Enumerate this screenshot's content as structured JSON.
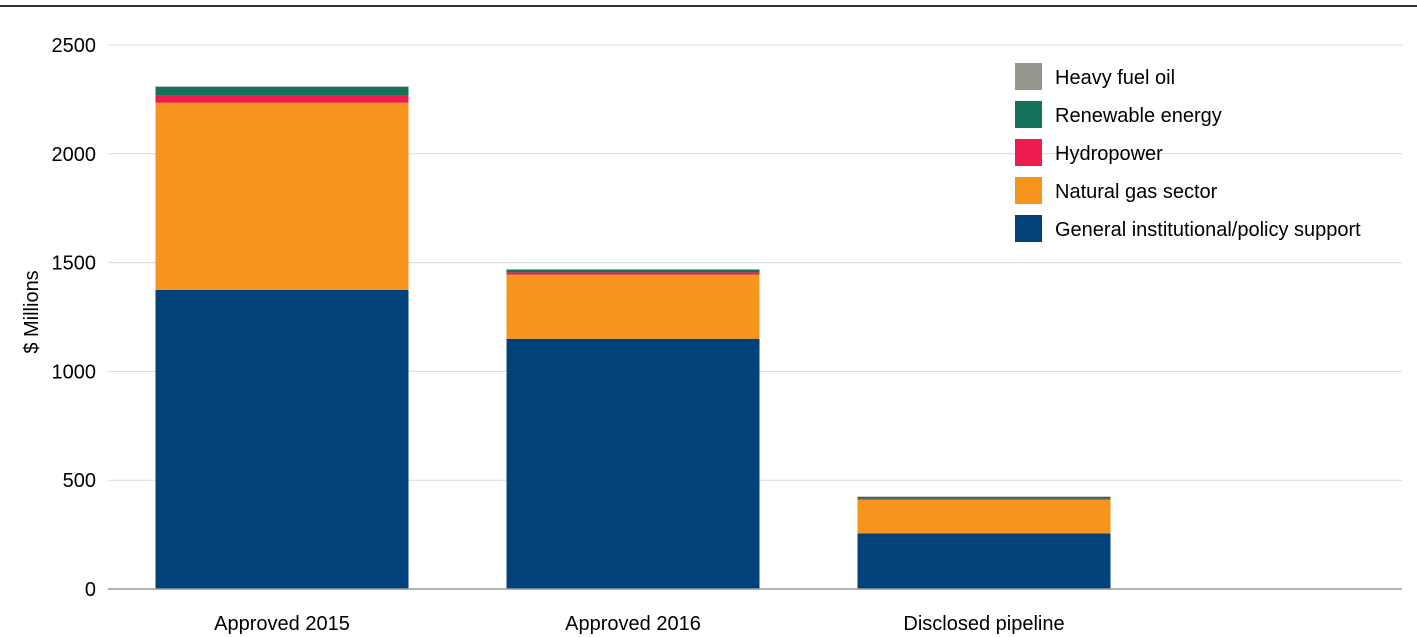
{
  "chart_data": {
    "type": "bar",
    "stacked": true,
    "title": "",
    "xlabel": "",
    "ylabel": "$ Millions",
    "ylim": [
      0,
      2500
    ],
    "yticks": [
      0,
      500,
      1000,
      1500,
      2000,
      2500
    ],
    "grid": true,
    "legend_position": "top-right",
    "categories": [
      "Approved 2015",
      "Approved 2016",
      "Disclosed pipeline"
    ],
    "series": [
      {
        "name": "General institutional/policy support",
        "color": "#02427a",
        "values": [
          1375,
          1150,
          255
        ]
      },
      {
        "name": "Natural gas sector",
        "color": "#f7941d",
        "values": [
          860,
          295,
          155
        ]
      },
      {
        "name": "Hydropower",
        "color": "#ee1c4e",
        "values": [
          35,
          10,
          5
        ]
      },
      {
        "name": "Renewable energy",
        "color": "#137259",
        "values": [
          38,
          12,
          8
        ]
      },
      {
        "name": "Heavy fuel oil",
        "color": "#96968c",
        "values": [
          2,
          3,
          2
        ]
      }
    ],
    "legend_order": [
      "Heavy fuel oil",
      "Renewable energy",
      "Hydropower",
      "Natural gas sector",
      "General institutional/policy support"
    ]
  }
}
